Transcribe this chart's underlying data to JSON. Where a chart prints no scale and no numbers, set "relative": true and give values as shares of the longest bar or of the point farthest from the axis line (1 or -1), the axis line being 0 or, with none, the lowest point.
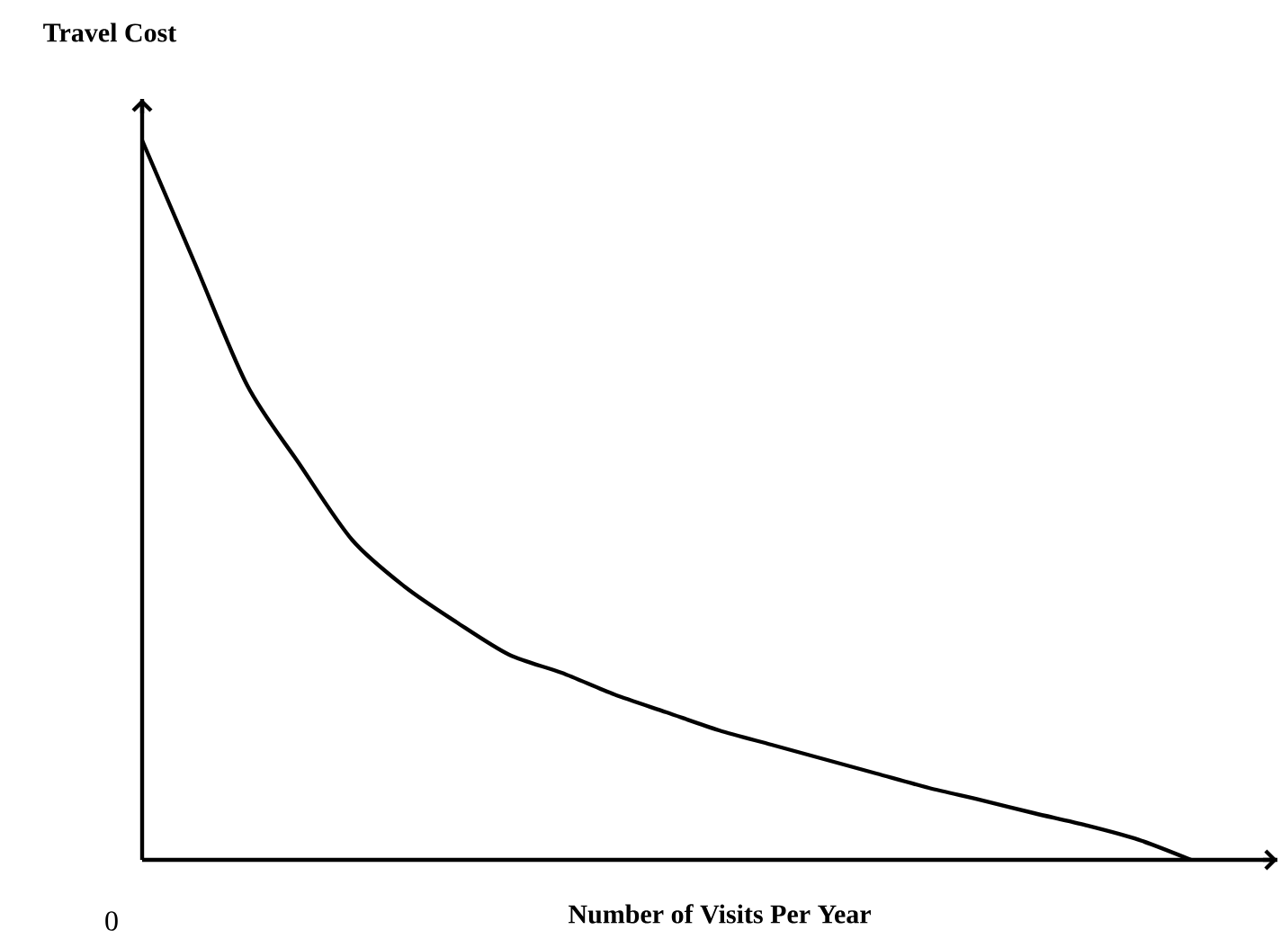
{
  "chart_data": {
    "type": "line",
    "relative": true,
    "ylabel": "Travel Cost",
    "xlabel": "Number of Visits Per Year",
    "annotations": [
      "0"
    ],
    "categories": [
      null,
      null,
      null,
      null,
      null,
      null,
      null,
      null,
      null,
      null,
      null,
      null,
      null,
      null,
      null,
      null,
      null,
      null,
      null,
      null,
      null
    ],
    "color": "#000000",
    "values": [
      1.0,
      0.83,
      0.66,
      0.55,
      0.445,
      0.38,
      0.33,
      0.285,
      0.26,
      0.23,
      0.205,
      0.18,
      0.16,
      0.14,
      0.12,
      0.1,
      0.083,
      0.065,
      0.048,
      0.028,
      0.0
    ]
  }
}
